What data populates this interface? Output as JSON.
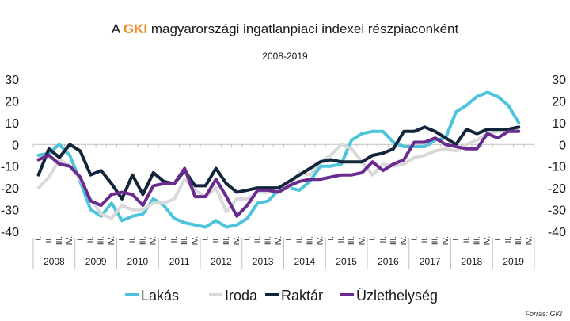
{
  "chart_data": {
    "type": "line",
    "title_prefix": "A ",
    "title_brand": "GKI",
    "title_rest": " magyarországi ingatlanpiaci indexei részpiaconként",
    "subtitle": "2008-2019",
    "ylim": [
      -40,
      30
    ],
    "yticks": [
      30,
      20,
      10,
      0,
      -10,
      -20,
      -30,
      -40
    ],
    "years": [
      "2008",
      "2009",
      "2010",
      "2011",
      "2012",
      "2013",
      "2014",
      "2015",
      "2016",
      "2017",
      "2018",
      "2019"
    ],
    "quarter_labels": [
      "I.",
      "II.",
      "III.",
      "IV."
    ],
    "series": [
      {
        "name": "Lakás",
        "color": "#4dc3dc",
        "values": [
          -5,
          -4,
          0,
          -5,
          -17,
          -30,
          -33,
          -27,
          -35,
          -33,
          -32,
          -25,
          -28,
          -34,
          -36,
          -37,
          -38,
          -35,
          -38,
          -37,
          -34,
          -27,
          -26,
          -21,
          -20,
          -21,
          -17,
          -10,
          -10,
          -9,
          2,
          5,
          6,
          6,
          1,
          -1,
          -1,
          -1,
          2,
          3,
          15,
          18,
          22,
          24,
          22,
          18,
          10
        ]
      },
      {
        "name": "Iroda",
        "color": "#d9d9d9",
        "values": [
          -20,
          -15,
          -7,
          -10,
          -16,
          -25,
          -32,
          -34,
          -28,
          -30,
          -30,
          -27,
          -27,
          -25,
          -16,
          -21,
          -24,
          -20,
          -31,
          -25,
          -25,
          -22,
          -22,
          -20,
          -20,
          -13,
          -14,
          -8,
          -5,
          0,
          -2,
          -8,
          -14,
          -9,
          -10,
          -9,
          -6,
          -5,
          -3,
          -2,
          -3,
          0,
          2,
          5,
          6,
          7,
          7
        ]
      },
      {
        "name": "Raktár",
        "color": "#13253a",
        "values": [
          -14,
          -2,
          -6,
          0,
          -3,
          -14,
          -12,
          -18,
          -25,
          -14,
          -23,
          -13,
          -17,
          -18,
          -12,
          -19,
          -19,
          -11,
          -18,
          -22,
          -21,
          -20,
          -20,
          -20,
          -17,
          -14,
          -11,
          -8,
          -7,
          -8,
          -8,
          -8,
          -5,
          -4,
          -2,
          6,
          6,
          8,
          6,
          3,
          0,
          7,
          5,
          7,
          7,
          7,
          8
        ]
      },
      {
        "name": "Üzlethelység",
        "color": "#6a2a8e",
        "values": [
          -7,
          -5,
          -9,
          -10,
          -15,
          -26,
          -28,
          -23,
          -22,
          -23,
          -28,
          -19,
          -18,
          -18,
          -11,
          -24,
          -24,
          -16,
          -24,
          -33,
          -28,
          -21,
          -21,
          -22,
          -19,
          -17,
          -16,
          -16,
          -15,
          -14,
          -14,
          -13,
          -8,
          -12,
          -9,
          -7,
          1,
          1,
          3,
          0,
          -1,
          -2,
          -2,
          5,
          3,
          6,
          6
        ]
      }
    ],
    "source": "Forrás: GKI"
  }
}
